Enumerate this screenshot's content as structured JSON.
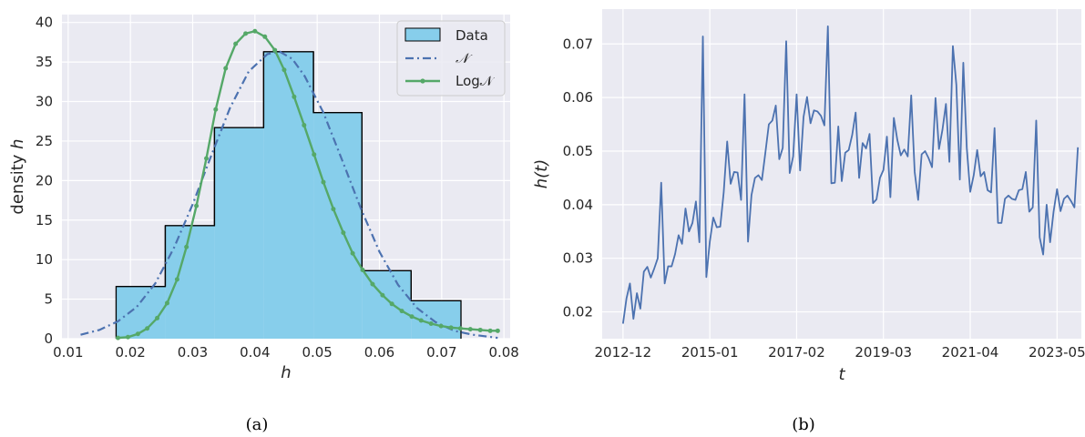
{
  "chart_data": [
    {
      "type": "bar",
      "panel": "(a)",
      "xlabel": "h",
      "ylabel": "density h",
      "xlim": [
        0.009,
        0.081
      ],
      "ylim": [
        0,
        41
      ],
      "xticks": [
        "0.01",
        "0.02",
        "0.03",
        "0.04",
        "0.05",
        "0.06",
        "0.07",
        "0.08"
      ],
      "yticks": [
        "0",
        "5",
        "10",
        "15",
        "20",
        "25",
        "30",
        "35",
        "40"
      ],
      "grid": true,
      "legend_position": "top-right",
      "legend": [
        "Data",
        "𝒩",
        "Log𝒩"
      ],
      "histogram": {
        "name": "Data",
        "bin_edges": [
          0.0177,
          0.0256,
          0.0335,
          0.0414,
          0.0494,
          0.0572,
          0.0651,
          0.0731
        ],
        "values": [
          6.6,
          14.3,
          26.7,
          36.3,
          28.6,
          8.6,
          4.8
        ],
        "fill": "#87CEEB",
        "edge": "#000000"
      },
      "series": [
        {
          "name": "𝒩",
          "style": "dashdot",
          "color": "#4C72B0",
          "x": [
            0.012,
            0.015,
            0.018,
            0.021,
            0.024,
            0.027,
            0.03,
            0.033,
            0.036,
            0.039,
            0.042,
            0.044,
            0.046,
            0.048,
            0.051,
            0.054,
            0.057,
            0.06,
            0.063,
            0.066,
            0.069,
            0.072,
            0.075,
            0.079
          ],
          "y": [
            0.5,
            1.1,
            2.2,
            4.0,
            7.0,
            11.5,
            17.0,
            23.2,
            29.2,
            33.8,
            36.0,
            36.3,
            35.4,
            33.2,
            28.6,
            22.6,
            16.5,
            11.0,
            6.8,
            3.9,
            2.1,
            1.0,
            0.5,
            0.1
          ]
        },
        {
          "name": "Log𝒩",
          "style": "solid-dots",
          "color": "#55A868",
          "x": [
            0.018,
            0.0196,
            0.0212,
            0.0227,
            0.0243,
            0.0259,
            0.0275,
            0.029,
            0.0306,
            0.0322,
            0.0337,
            0.0353,
            0.0369,
            0.0385,
            0.04,
            0.0416,
            0.0432,
            0.0447,
            0.0463,
            0.0479,
            0.0495,
            0.051,
            0.0526,
            0.0542,
            0.0557,
            0.0573,
            0.0589,
            0.0605,
            0.062,
            0.0636,
            0.0652,
            0.0667,
            0.0683,
            0.0699,
            0.0715,
            0.073,
            0.0746,
            0.0762,
            0.0778,
            0.079
          ],
          "y": [
            0.1,
            0.2,
            0.6,
            1.3,
            2.6,
            4.5,
            7.5,
            11.6,
            16.8,
            22.8,
            29.0,
            34.2,
            37.3,
            38.6,
            38.9,
            38.2,
            36.5,
            34.0,
            30.6,
            27.0,
            23.3,
            19.8,
            16.4,
            13.4,
            10.8,
            8.7,
            6.9,
            5.5,
            4.4,
            3.5,
            2.8,
            2.3,
            1.9,
            1.6,
            1.4,
            1.3,
            1.2,
            1.1,
            1.0,
            1.0
          ]
        }
      ]
    },
    {
      "type": "line",
      "panel": "(b)",
      "xlabel": "t",
      "ylabel": "h(t)",
      "x_start": "2012-12",
      "x_step_months": 1,
      "xlim_index": [
        -6,
        132
      ],
      "ylim": [
        0.015,
        0.0765
      ],
      "xticks": [
        {
          "label": "2012-12",
          "index": 0
        },
        {
          "label": "2015-01",
          "index": 25
        },
        {
          "label": "2017-02",
          "index": 50
        },
        {
          "label": "2019-03",
          "index": 75
        },
        {
          "label": "2021-04",
          "index": 100
        },
        {
          "label": "2023-05",
          "index": 125
        }
      ],
      "yticks": [
        "0.02",
        "0.03",
        "0.04",
        "0.05",
        "0.06",
        "0.07"
      ],
      "grid": true,
      "series": [
        {
          "name": "",
          "color": "#4C72B0",
          "values": [
            0.0178,
            0.0225,
            0.0253,
            0.0187,
            0.0235,
            0.0206,
            0.0275,
            0.0284,
            0.0264,
            0.0281,
            0.03,
            0.0441,
            0.0253,
            0.0285,
            0.0285,
            0.0308,
            0.0343,
            0.0327,
            0.0393,
            0.035,
            0.0366,
            0.0406,
            0.033,
            0.0714,
            0.0265,
            0.0331,
            0.0376,
            0.0358,
            0.0359,
            0.0423,
            0.0518,
            0.0439,
            0.0461,
            0.046,
            0.0409,
            0.0606,
            0.0331,
            0.0418,
            0.045,
            0.0455,
            0.0446,
            0.0497,
            0.055,
            0.0557,
            0.0585,
            0.0485,
            0.0506,
            0.0705,
            0.0459,
            0.049,
            0.0606,
            0.0464,
            0.0564,
            0.0601,
            0.0552,
            0.0576,
            0.0574,
            0.0566,
            0.0548,
            0.0733,
            0.044,
            0.0441,
            0.0546,
            0.0444,
            0.0497,
            0.0502,
            0.053,
            0.0572,
            0.045,
            0.0515,
            0.0505,
            0.0532,
            0.0403,
            0.041,
            0.045,
            0.0465,
            0.0527,
            0.0414,
            0.0562,
            0.0521,
            0.0492,
            0.0503,
            0.049,
            0.0604,
            0.0461,
            0.0409,
            0.0494,
            0.05,
            0.0487,
            0.047,
            0.0599,
            0.0504,
            0.054,
            0.0588,
            0.048,
            0.0696,
            0.0624,
            0.0447,
            0.0665,
            0.0506,
            0.0424,
            0.0455,
            0.0502,
            0.0453,
            0.0461,
            0.0427,
            0.0423,
            0.0543,
            0.0366,
            0.0366,
            0.0411,
            0.0417,
            0.0411,
            0.0409,
            0.0427,
            0.0429,
            0.0461,
            0.0387,
            0.0395,
            0.0557,
            0.0339,
            0.0307,
            0.04,
            0.033,
            0.0387,
            0.0429,
            0.0388,
            0.0411,
            0.0417,
            0.0407,
            0.0395,
            0.0507
          ]
        }
      ]
    }
  ],
  "captions": [
    "(a)",
    "(b)"
  ]
}
